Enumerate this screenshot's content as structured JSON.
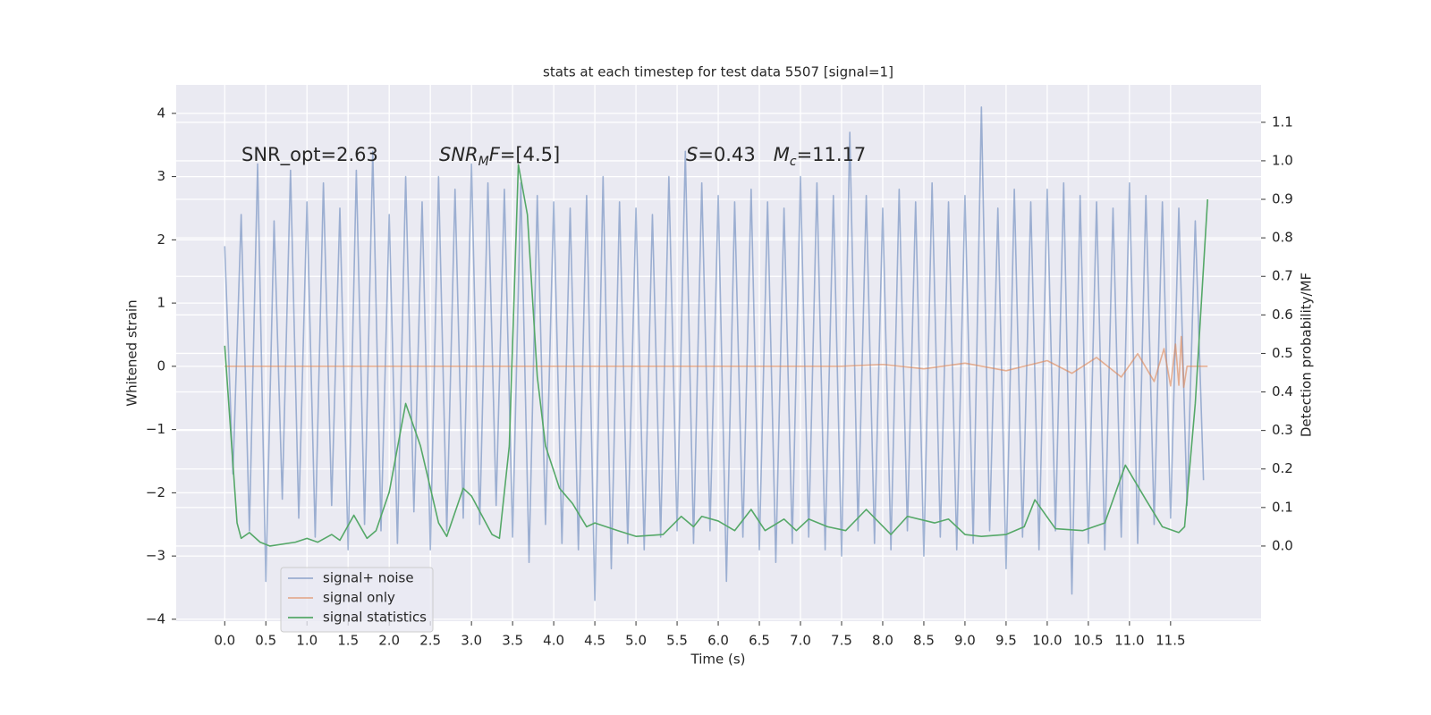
{
  "chart_data": {
    "type": "line",
    "title": "stats at each timestep for test data 5507 [signal=1]",
    "xlabel": "Time (s)",
    "ylabel": "Whitened strain",
    "y2label": "Detection probability/MF",
    "grid": true,
    "legend": "lower left",
    "xlim": [
      -0.59,
      12.6
    ],
    "ylim": [
      -4.03,
      4.45
    ],
    "y2lim": [
      -0.195,
      1.197
    ],
    "xticks": [
      {
        "value": 0,
        "label": "0.0"
      },
      0.5,
      {
        "value": 1,
        "label": "1.0"
      },
      1.5,
      {
        "value": 2,
        "label": "2.0"
      },
      2.5,
      {
        "value": 3,
        "label": "3.0"
      },
      3.5,
      {
        "value": 4,
        "label": "4.0"
      },
      4.5,
      {
        "value": 5,
        "label": "5.0"
      },
      5.5,
      {
        "value": 6,
        "label": "6.0"
      },
      6.5,
      {
        "value": 7,
        "label": "7.0"
      },
      7.5,
      {
        "value": 8,
        "label": "8.0"
      },
      8.5,
      {
        "value": 9,
        "label": "9.0"
      },
      9.5,
      {
        "value": 10,
        "label": "10.0"
      },
      10.5,
      {
        "value": 11,
        "label": "11.0"
      },
      11.5
    ],
    "yticks": [
      {
        "value": -4,
        "label": "−4"
      },
      {
        "value": -3,
        "label": "−3"
      },
      {
        "value": -2,
        "label": "−2"
      },
      {
        "value": -1,
        "label": "−1"
      },
      0,
      1,
      2,
      3,
      4
    ],
    "y2ticks": [
      {
        "value": 0,
        "label": "0.0"
      },
      0.1,
      0.2,
      0.3,
      0.4,
      0.5,
      0.6,
      0.7,
      0.8,
      0.9,
      {
        "value": 1,
        "label": "1.0"
      },
      1.1
    ],
    "annotations": [
      [
        {
          "text": "SNR_opt=2.63",
          "style": "normal"
        }
      ],
      [
        {
          "text": "SNR",
          "style": "italic"
        },
        {
          "text": "M",
          "style": "italic-sub"
        },
        {
          "text": "F",
          "style": "italic"
        },
        {
          "text": "=[4.5]",
          "style": "normal"
        }
      ],
      [
        {
          "text": "S",
          "style": "italic"
        },
        {
          "text": "=0.43   ",
          "style": "normal"
        },
        {
          "text": "M",
          "style": "italic"
        },
        {
          "text": "c",
          "style": "italic-sub"
        },
        {
          "text": "=11.17",
          "style": "normal"
        }
      ]
    ],
    "series": [
      {
        "name": "signal+ noise",
        "color": "#4c72b0",
        "opacity": 0.5,
        "axis": "y",
        "x": [
          0,
          0.1,
          0.2,
          0.3,
          0.4,
          0.5,
          0.6,
          0.7,
          0.8,
          0.9,
          1,
          1.1,
          1.2,
          1.3,
          1.4,
          1.5,
          1.6,
          1.7,
          1.8,
          1.9,
          2,
          2.1,
          2.2,
          2.3,
          2.4,
          2.5,
          2.6,
          2.7,
          2.8,
          2.9,
          3,
          3.1,
          3.2,
          3.3,
          3.4,
          3.5,
          3.6,
          3.7,
          3.8,
          3.9,
          4,
          4.1,
          4.2,
          4.3,
          4.4,
          4.5,
          4.6,
          4.7,
          4.8,
          4.9,
          5,
          5.1,
          5.2,
          5.3,
          5.4,
          5.5,
          5.6,
          5.7,
          5.8,
          5.9,
          6,
          6.1,
          6.2,
          6.3,
          6.4,
          6.5,
          6.6,
          6.7,
          6.8,
          6.9,
          7,
          7.1,
          7.2,
          7.3,
          7.4,
          7.5,
          7.6,
          7.7,
          7.8,
          7.9,
          8,
          8.1,
          8.2,
          8.3,
          8.4,
          8.5,
          8.6,
          8.7,
          8.8,
          8.9,
          9,
          9.1,
          9.2,
          9.3,
          9.4,
          9.5,
          9.6,
          9.7,
          9.8,
          9.9,
          10,
          10.1,
          10.2,
          10.3,
          10.4,
          10.5,
          10.6,
          10.7,
          10.8,
          10.9,
          11,
          11.1,
          11.2,
          11.3,
          11.4,
          11.5,
          11.6,
          11.7,
          11.8,
          11.9
        ],
        "values": [
          1.9,
          -1.7,
          2.4,
          -2.6,
          3.2,
          -3.4,
          2.3,
          -2.1,
          3.1,
          -2.4,
          2.6,
          -2.7,
          2.9,
          -2.2,
          2.5,
          -2.9,
          3.1,
          -2.5,
          3.4,
          -2.6,
          2.4,
          -2.8,
          3.0,
          -2.3,
          2.6,
          -2.9,
          3.0,
          -2.6,
          2.8,
          -2.4,
          3.2,
          -2.5,
          2.9,
          -2.2,
          2.8,
          -2.7,
          2.9,
          -3.1,
          2.7,
          -2.5,
          2.6,
          -2.8,
          2.5,
          -2.9,
          2.7,
          -3.7,
          3.0,
          -3.2,
          2.6,
          -2.8,
          2.5,
          -2.9,
          2.4,
          -2.7,
          3.0,
          -2.6,
          3.4,
          -2.8,
          2.9,
          -2.6,
          2.7,
          -3.4,
          2.6,
          -2.7,
          2.8,
          -2.9,
          2.6,
          -3.1,
          2.5,
          -2.8,
          3.0,
          -2.7,
          2.9,
          -2.9,
          2.7,
          -3.0,
          3.7,
          -2.6,
          2.7,
          -2.8,
          2.5,
          -2.9,
          2.8,
          -2.6,
          2.6,
          -3.0,
          2.9,
          -2.7,
          2.6,
          -2.9,
          2.7,
          -2.8,
          4.1,
          -2.6,
          2.5,
          -3.2,
          2.8,
          -2.7,
          2.6,
          -2.9,
          2.8,
          -2.6,
          2.9,
          -3.6,
          2.7,
          -2.8,
          2.6,
          -2.9,
          2.5,
          -2.7,
          2.9,
          -2.8,
          2.7,
          -2.5,
          2.6,
          -2.4,
          2.5,
          -2.2,
          2.3,
          -1.8
        ]
      },
      {
        "name": "signal only",
        "color": "#dd8452",
        "opacity": 0.6,
        "axis": "y",
        "x": [
          0,
          7.5,
          8,
          8.5,
          9,
          9.5,
          10,
          10.3,
          10.6,
          10.9,
          11.1,
          11.3,
          11.42,
          11.5,
          11.56,
          11.6,
          11.63,
          11.66,
          11.7,
          11.95
        ],
        "values": [
          0,
          0,
          0.03,
          -0.04,
          0.05,
          -0.07,
          0.09,
          -0.11,
          0.14,
          -0.17,
          0.2,
          -0.24,
          0.28,
          -0.31,
          0.35,
          -0.3,
          0.47,
          -0.33,
          0,
          0
        ]
      },
      {
        "name": "signal statistics",
        "color": "#55a868",
        "opacity": 1,
        "axis": "y2",
        "x": [
          0,
          0.15,
          0.2,
          0.3,
          0.43,
          0.55,
          0.86,
          1,
          1.13,
          1.3,
          1.4,
          1.57,
          1.73,
          1.84,
          2,
          2.2,
          2.38,
          2.6,
          2.7,
          2.9,
          3,
          3.25,
          3.34,
          3.46,
          3.57,
          3.68,
          3.8,
          3.9,
          4.07,
          4.23,
          4.4,
          4.5,
          4.78,
          5,
          5.33,
          5.55,
          5.7,
          5.8,
          6,
          6.2,
          6.4,
          6.57,
          6.8,
          6.95,
          7.1,
          7.33,
          7.55,
          7.8,
          8.1,
          8.3,
          8.63,
          8.8,
          9,
          9.2,
          9.5,
          9.72,
          9.85,
          10.1,
          10.43,
          10.7,
          10.95,
          11.2,
          11.4,
          11.6,
          11.67,
          11.8,
          11.95
        ],
        "values": [
          0.52,
          0.06,
          0.02,
          0.035,
          0.01,
          0,
          0.01,
          0.02,
          0.01,
          0.03,
          0.015,
          0.08,
          0.02,
          0.04,
          0.14,
          0.37,
          0.26,
          0.06,
          0.025,
          0.15,
          0.13,
          0.03,
          0.02,
          0.26,
          0.99,
          0.86,
          0.44,
          0.26,
          0.15,
          0.11,
          0.05,
          0.06,
          0.04,
          0.025,
          0.03,
          0.077,
          0.05,
          0.077,
          0.065,
          0.04,
          0.095,
          0.04,
          0.07,
          0.04,
          0.07,
          0.05,
          0.04,
          0.095,
          0.03,
          0.077,
          0.06,
          0.07,
          0.03,
          0.025,
          0.03,
          0.05,
          0.12,
          0.045,
          0.04,
          0.06,
          0.21,
          0.12,
          0.05,
          0.035,
          0.05,
          0.37,
          0.9
        ]
      }
    ]
  }
}
